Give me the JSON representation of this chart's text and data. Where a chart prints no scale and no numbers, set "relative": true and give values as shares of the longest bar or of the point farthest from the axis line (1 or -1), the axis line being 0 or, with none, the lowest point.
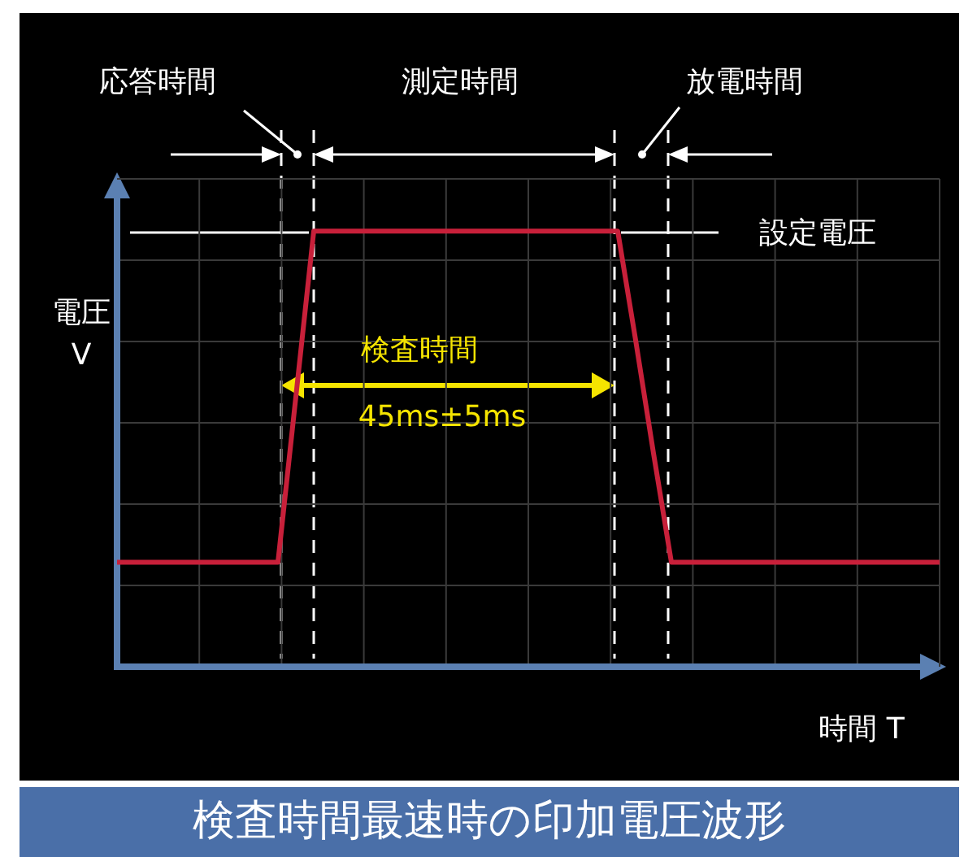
{
  "chart_data": {
    "type": "line",
    "title": "検査時間最速時の印加電圧波形",
    "xlabel": "時間 T",
    "ylabel": "電圧 V",
    "relative": true,
    "grid": true,
    "marker": "none",
    "categories": [
      null,
      null,
      null,
      null,
      null,
      null,
      null,
      null,
      null,
      null,
      null,
      null,
      null,
      null,
      null,
      null,
      null,
      null,
      null,
      null,
      null,
      null,
      null,
      null,
      null,
      null,
      null,
      null,
      null,
      null,
      null,
      null,
      null,
      null,
      null,
      null,
      null,
      null,
      null,
      null,
      null,
      null,
      null,
      null,
      null,
      null,
      null
    ],
    "series": [
      {
        "color": "#c8203a",
        "values": [
          0.24,
          0.24,
          0.24,
          0.24,
          0.24,
          0.24,
          0.24,
          0.24,
          0.24,
          0.24,
          0.62,
          1,
          1,
          1,
          1,
          1,
          1,
          1,
          1,
          1,
          1,
          1,
          1,
          1,
          1,
          1,
          1,
          1,
          1,
          0.75,
          0.49,
          0.24,
          0.24,
          0.24,
          0.24,
          0.24,
          0.24,
          0.24,
          0.24,
          0.24,
          0.24,
          0.24,
          0.24,
          0.24,
          0.24,
          0.24,
          0.24
        ]
      }
    ],
    "annotations": [
      "応答時間",
      "測定時間",
      "放電時間",
      "設定電圧",
      "検査時間",
      "45ms±5ms"
    ]
  }
}
